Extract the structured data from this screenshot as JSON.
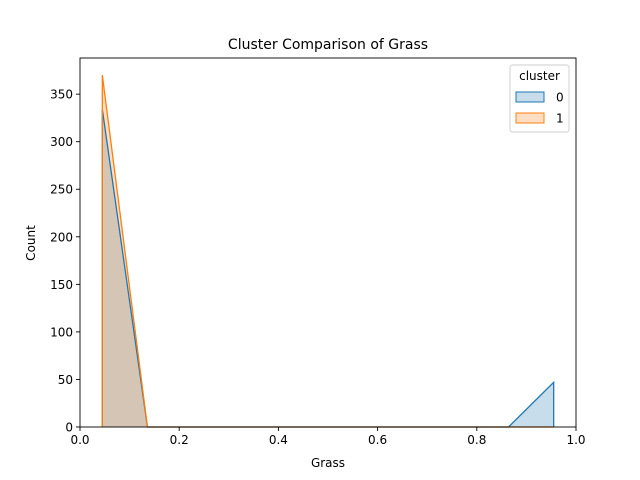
{
  "chart_data": {
    "type": "area",
    "title": "Cluster Comparison of Grass",
    "xlabel": "Grass",
    "ylabel": "Count",
    "xlim": [
      0.0,
      1.0
    ],
    "ylim": [
      0,
      388
    ],
    "x_ticks": [
      0.0,
      0.2,
      0.4,
      0.6,
      0.8,
      1.0
    ],
    "x_tick_labels": [
      "0.0",
      "0.2",
      "0.4",
      "0.6",
      "0.8",
      "1.0"
    ],
    "y_ticks": [
      0,
      50,
      100,
      150,
      200,
      250,
      300,
      350
    ],
    "y_tick_labels": [
      "0",
      "50",
      "100",
      "150",
      "200",
      "250",
      "300",
      "350"
    ],
    "grid": false,
    "legend": {
      "title": "cluster",
      "placement": "top-right",
      "entries": [
        "0",
        "1"
      ]
    },
    "series": [
      {
        "name": "0",
        "color": "#1f77b4",
        "points": [
          {
            "x": 0.045,
            "y": 0
          },
          {
            "x": 0.045,
            "y": 334
          },
          {
            "x": 0.136,
            "y": 0
          },
          {
            "x": 0.864,
            "y": 0
          },
          {
            "x": 0.955,
            "y": 47
          },
          {
            "x": 0.955,
            "y": 0
          }
        ]
      },
      {
        "name": "1",
        "color": "#ff7f0e",
        "points": [
          {
            "x": 0.045,
            "y": 0
          },
          {
            "x": 0.045,
            "y": 370
          },
          {
            "x": 0.136,
            "y": 0
          },
          {
            "x": 0.955,
            "y": 0
          }
        ]
      }
    ]
  }
}
